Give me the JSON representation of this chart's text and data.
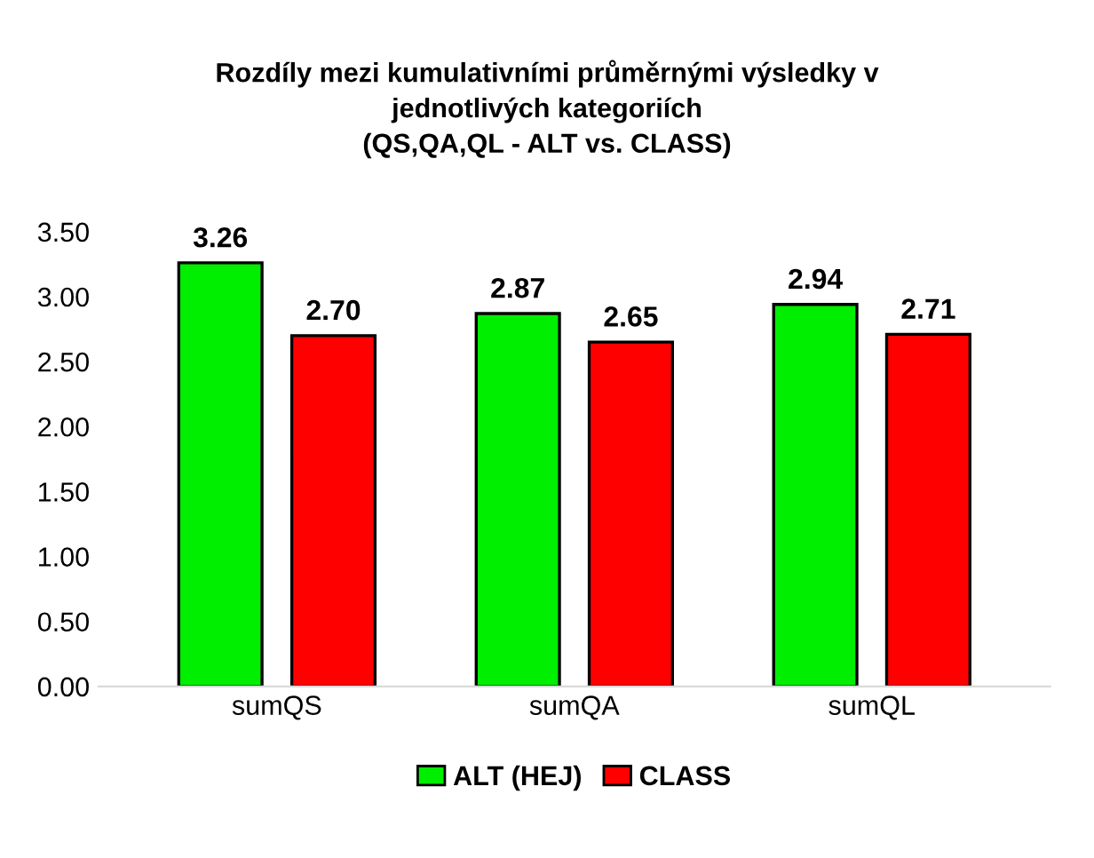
{
  "chart_data": {
    "type": "bar",
    "title": "Rozdíly mezi kumulativními průměrnými výsledky v\njednotlivých kategoriích\n(QS,QA,QL - ALT vs. CLASS)",
    "categories": [
      "sumQS",
      "sumQA",
      "sumQL"
    ],
    "series": [
      {
        "name": "ALT (HEJ)",
        "color": "#00ee00",
        "values": [
          3.26,
          2.87,
          2.94
        ],
        "value_labels": [
          "3.26",
          "2.87",
          "2.94"
        ]
      },
      {
        "name": "CLASS",
        "color": "#ff0000",
        "values": [
          2.7,
          2.65,
          2.71
        ],
        "value_labels": [
          "2.70",
          "2.65",
          "2.71"
        ]
      }
    ],
    "ylim": [
      0,
      3.5
    ],
    "yticks": [
      {
        "value": 0,
        "label": "0.00"
      },
      {
        "value": 0.5,
        "label": "0.50"
      },
      {
        "value": 1,
        "label": "1.00"
      },
      {
        "value": 1.5,
        "label": "1.50"
      },
      {
        "value": 2,
        "label": "2.00"
      },
      {
        "value": 2.5,
        "label": "2.50"
      },
      {
        "value": 3,
        "label": "3.00"
      },
      {
        "value": 3.5,
        "label": "3.50"
      }
    ],
    "grid": false,
    "legend": "bottom"
  }
}
